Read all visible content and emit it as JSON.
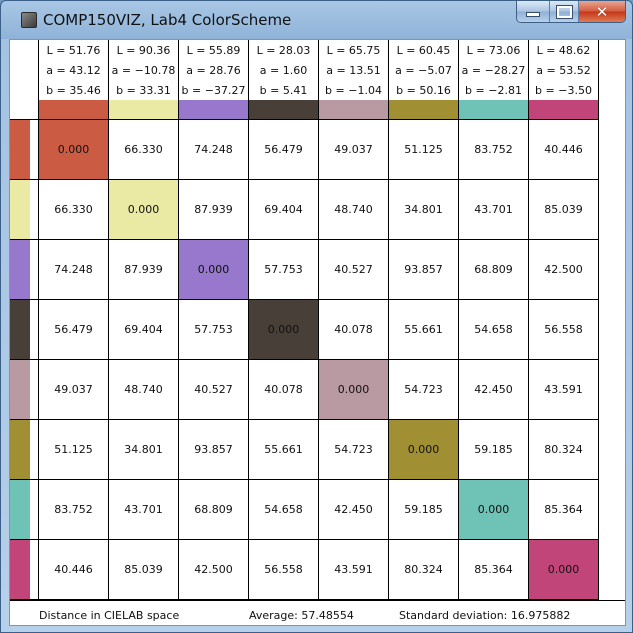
{
  "window": {
    "title": "COMP150VIZ, Lab4 ColorScheme",
    "min_icon": "minimize-icon",
    "max_icon": "maximize-icon",
    "close_icon": "close-icon",
    "close_glyph": "✕"
  },
  "colors": [
    {
      "L": "L = 51.76",
      "a": "a = 43.12",
      "b": "b = 35.46",
      "hex": "#cc5b44"
    },
    {
      "L": "L = 90.36",
      "a": "a = −10.78",
      "b": "b = 33.31",
      "hex": "#ebeaa4"
    },
    {
      "L": "L = 55.89",
      "a": "a = 28.76",
      "b": "b = −37.27",
      "hex": "#9778cc"
    },
    {
      "L": "L = 28.03",
      "a": "a = 1.60",
      "b": "b = 5.41",
      "hex": "#473f38"
    },
    {
      "L": "L = 65.75",
      "a": "a = 13.51",
      "b": "b = −1.04",
      "hex": "#b99aa2"
    },
    {
      "L": "L = 60.45",
      "a": "a = −5.07",
      "b": "b = 50.16",
      "hex": "#a08f33"
    },
    {
      "L": "L = 73.06",
      "a": "a = −28.27",
      "b": "b = −2.81",
      "hex": "#6ec2b6"
    },
    {
      "L": "L = 48.62",
      "a": "a = 53.52",
      "b": "b = −3.50",
      "hex": "#c2457a"
    }
  ],
  "matrix": [
    [
      "0.000",
      "66.330",
      "74.248",
      "56.479",
      "49.037",
      "51.125",
      "83.752",
      "40.446"
    ],
    [
      "66.330",
      "0.000",
      "87.939",
      "69.404",
      "48.740",
      "34.801",
      "43.701",
      "85.039"
    ],
    [
      "74.248",
      "87.939",
      "0.000",
      "57.753",
      "40.527",
      "93.857",
      "68.809",
      "42.500"
    ],
    [
      "56.479",
      "69.404",
      "57.753",
      "0.000",
      "40.078",
      "55.661",
      "54.658",
      "56.558"
    ],
    [
      "49.037",
      "48.740",
      "40.527",
      "40.078",
      "0.000",
      "54.723",
      "42.450",
      "43.591"
    ],
    [
      "51.125",
      "34.801",
      "93.857",
      "55.661",
      "54.723",
      "0.000",
      "59.185",
      "80.324"
    ],
    [
      "83.752",
      "43.701",
      "68.809",
      "54.658",
      "42.450",
      "59.185",
      "0.000",
      "85.364"
    ],
    [
      "40.446",
      "85.039",
      "42.500",
      "56.558",
      "43.591",
      "80.324",
      "85.364",
      "0.000"
    ]
  ],
  "status": {
    "label": "Distance in CIELAB space",
    "average": "Average: 57.48554",
    "stddev": "Standard deviation: 16.975882"
  }
}
